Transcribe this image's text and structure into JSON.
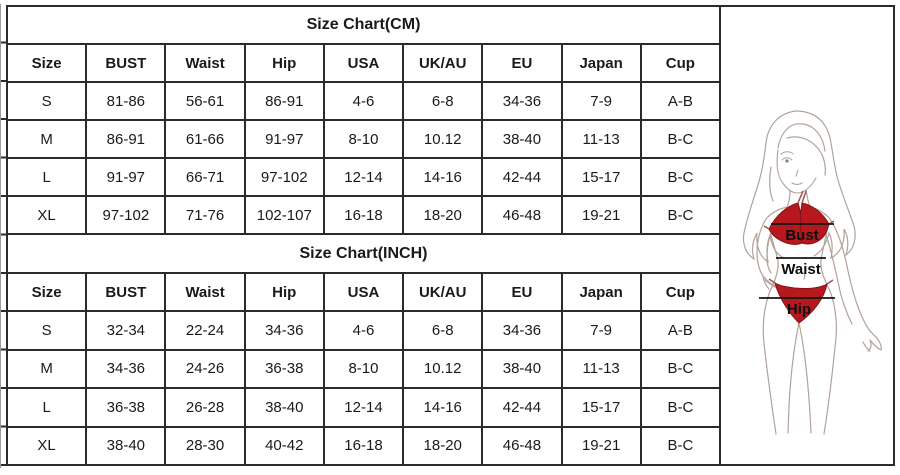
{
  "colors": {
    "table_border": "#2b2b2b",
    "text": "#1a1a1a",
    "bikini_red": "#b5191e",
    "figure_outline": "#b2a29a",
    "edge_line": "#9a9a9a"
  },
  "tables": [
    {
      "title": "Size Chart(CM)",
      "headers": [
        "Size",
        "BUST",
        "Waist",
        "Hip",
        "USA",
        "UK/AU",
        "EU",
        "Japan",
        "Cup"
      ],
      "rows": [
        [
          "S",
          "81-86",
          "56-61",
          "86-91",
          "4-6",
          "6-8",
          "34-36",
          "7-9",
          "A-B"
        ],
        [
          "M",
          "86-91",
          "61-66",
          "91-97",
          "8-10",
          "10.12",
          "38-40",
          "11-13",
          "B-C"
        ],
        [
          "L",
          "91-97",
          "66-71",
          "97-102",
          "12-14",
          "14-16",
          "42-44",
          "15-17",
          "B-C"
        ],
        [
          "XL",
          "97-102",
          "71-76",
          "102-107",
          "16-18",
          "18-20",
          "46-48",
          "19-21",
          "B-C"
        ]
      ]
    },
    {
      "title": "Size Chart(INCH)",
      "headers": [
        "Size",
        "BUST",
        "Waist",
        "Hip",
        "USA",
        "UK/AU",
        "EU",
        "Japan",
        "Cup"
      ],
      "rows": [
        [
          "S",
          "32-34",
          "22-24",
          "34-36",
          "4-6",
          "6-8",
          "34-36",
          "7-9",
          "A-B"
        ],
        [
          "M",
          "34-36",
          "24-26",
          "36-38",
          "8-10",
          "10.12",
          "38-40",
          "11-13",
          "B-C"
        ],
        [
          "L",
          "36-38",
          "26-28",
          "38-40",
          "12-14",
          "14-16",
          "42-44",
          "15-17",
          "B-C"
        ],
        [
          "XL",
          "38-40",
          "28-30",
          "40-42",
          "16-18",
          "18-20",
          "46-48",
          "19-21",
          "B-C"
        ]
      ]
    }
  ],
  "figure": {
    "labels": {
      "bust": "Bust",
      "waist": "Waist",
      "hip": "Hip"
    }
  }
}
